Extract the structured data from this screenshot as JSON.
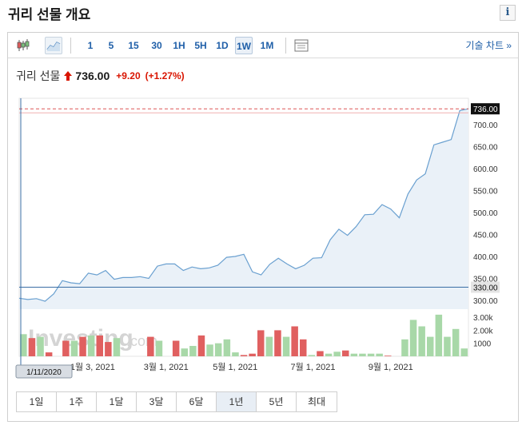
{
  "header": {
    "title": "귀리 선물 개요",
    "info_label": "i"
  },
  "toolbar": {
    "intervals": [
      "1",
      "5",
      "15",
      "30",
      "1H",
      "5H",
      "1D",
      "1W",
      "1M"
    ],
    "active_interval": "1W",
    "tech_chart_link": "기술 차트 »"
  },
  "quote": {
    "name": "귀리 선물",
    "price": "736.00",
    "change": "+9.20",
    "change_pct": "(+1.27%)",
    "up_color": "#d91400"
  },
  "watermark": {
    "text": "Investing",
    "suffix": ".com"
  },
  "cursor_date": "1/11/2020",
  "range_tabs": [
    "1일",
    "1주",
    "1달",
    "3달",
    "6달",
    "1년",
    "5년",
    "최대"
  ],
  "active_range": "1년",
  "chart_data": {
    "type": "area",
    "y_axis": {
      "ticks": [
        300,
        350,
        400,
        450,
        500,
        550,
        600,
        650,
        700
      ],
      "tick_labels": [
        "300.00",
        "350.00",
        "400.00",
        "450.00",
        "500.00",
        "550.00",
        "600.00",
        "650.00",
        "700.00"
      ],
      "range": [
        280,
        760
      ]
    },
    "last_price_label": "736.00",
    "last_price": 736,
    "cursor_price_label": "330.00",
    "cursor_price": 330,
    "x_tick_labels": [
      "1월 3, 2021",
      "3월 1, 2021",
      "5월 1, 2021",
      "7월 1, 2021",
      "9월 1, 2021"
    ],
    "x_tick_index": [
      8.5,
      17,
      25,
      34,
      43
    ],
    "price_series": [
      305,
      302,
      304,
      298,
      315,
      345,
      340,
      338,
      362,
      358,
      368,
      348,
      352,
      352,
      354,
      350,
      378,
      383,
      383,
      368,
      376,
      372,
      374,
      380,
      398,
      400,
      405,
      365,
      358,
      382,
      396,
      383,
      372,
      380,
      396,
      397,
      438,
      462,
      448,
      468,
      495,
      496,
      518,
      508,
      488,
      542,
      574,
      588,
      654,
      660,
      666,
      732,
      736
    ],
    "volume_axis": {
      "tick_labels": [
        "3.00k",
        "2.00k",
        "1000"
      ],
      "ticks": [
        3000,
        2000,
        1000
      ],
      "range": [
        0,
        3500
      ]
    },
    "volume_series": [
      1700,
      1400,
      1500,
      300,
      0,
      1200,
      1200,
      1500,
      1600,
      1600,
      1100,
      1400,
      0,
      0,
      0,
      1500,
      1200,
      0,
      1200,
      600,
      800,
      1600,
      900,
      1000,
      1300,
      300,
      100,
      200,
      2000,
      1500,
      2000,
      1500,
      2300,
      1300,
      100,
      400,
      200,
      350,
      450,
      200,
      200,
      200,
      200,
      50,
      0,
      1300,
      2800,
      2300,
      1500,
      3200,
      1500,
      2100,
      600
    ],
    "volume_up": [
      true,
      false,
      true,
      false,
      false,
      false,
      true,
      false,
      true,
      false,
      false,
      true,
      false,
      false,
      false,
      false,
      true,
      false,
      false,
      true,
      true,
      false,
      true,
      true,
      true,
      true,
      false,
      false,
      false,
      true,
      false,
      true,
      false,
      false,
      true,
      false,
      true,
      true,
      false,
      true,
      true,
      true,
      true,
      false,
      false,
      true,
      true,
      true,
      true,
      true,
      true,
      true,
      true
    ],
    "colors": {
      "line": "#6aa0d0",
      "fill": "#eaf1f8",
      "vol_up": "#a8d8a8",
      "vol_down": "#e06060",
      "dashed": "#d55",
      "cursor": "#3a6ea5"
    }
  }
}
